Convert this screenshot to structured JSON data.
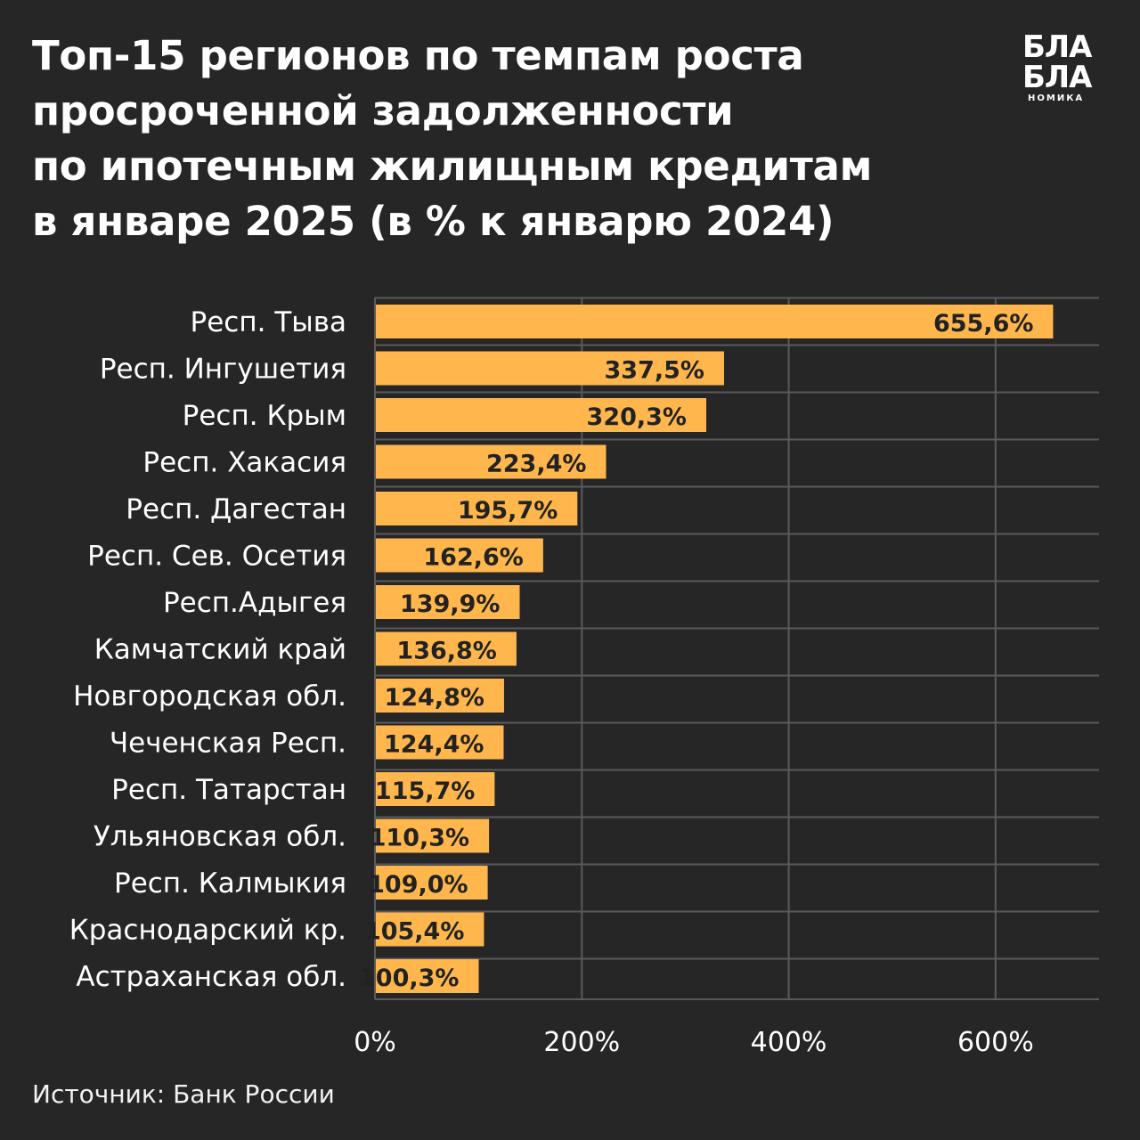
{
  "title_lines": [
    "Топ-15 регионов по темпам роста",
    "просроченной задолженности",
    "по ипотечным жилищным кредитам",
    "в январе 2025 (в % к январю 2024)"
  ],
  "logo": {
    "line1": "БЛА",
    "line2": "БЛА",
    "line3": "НОМИКА"
  },
  "source": "Источник: Банк России",
  "colors": {
    "background": "#262626",
    "bar": "#ffb74d",
    "grid": "#5a5a5a",
    "text": "#ffffff"
  },
  "chart_data": {
    "type": "bar",
    "orientation": "horizontal",
    "categories": [
      "Респ. Тыва",
      "Респ. Ингушетия",
      "Респ. Крым",
      "Респ. Хакасия",
      "Респ. Дагестан",
      "Респ. Сев. Осетия",
      "Респ.Адыгея",
      "Камчатский край",
      "Новгородская обл.",
      "Чеченская Респ.",
      "Респ. Татарстан",
      "Ульяновская обл.",
      "Респ. Калмыкия",
      "Краснодарский кр.",
      "Астраханская обл."
    ],
    "values": [
      655.6,
      337.5,
      320.3,
      223.4,
      195.7,
      162.6,
      139.9,
      136.8,
      124.8,
      124.4,
      115.7,
      110.3,
      109.0,
      105.4,
      100.3
    ],
    "value_labels": [
      "655,6%",
      "337,5%",
      "320,3%",
      "223,4%",
      "195,7%",
      "162,6%",
      "139,9%",
      "136,8%",
      "124,8%",
      "124,4%",
      "115,7%",
      "110,3%",
      "109,0%",
      "105,4%",
      "100,3%"
    ],
    "xlim": [
      0,
      700
    ],
    "xticks": [
      0,
      200,
      400,
      600
    ],
    "xtick_labels": [
      "0%",
      "200%",
      "400%",
      "600%"
    ],
    "grid": true
  }
}
